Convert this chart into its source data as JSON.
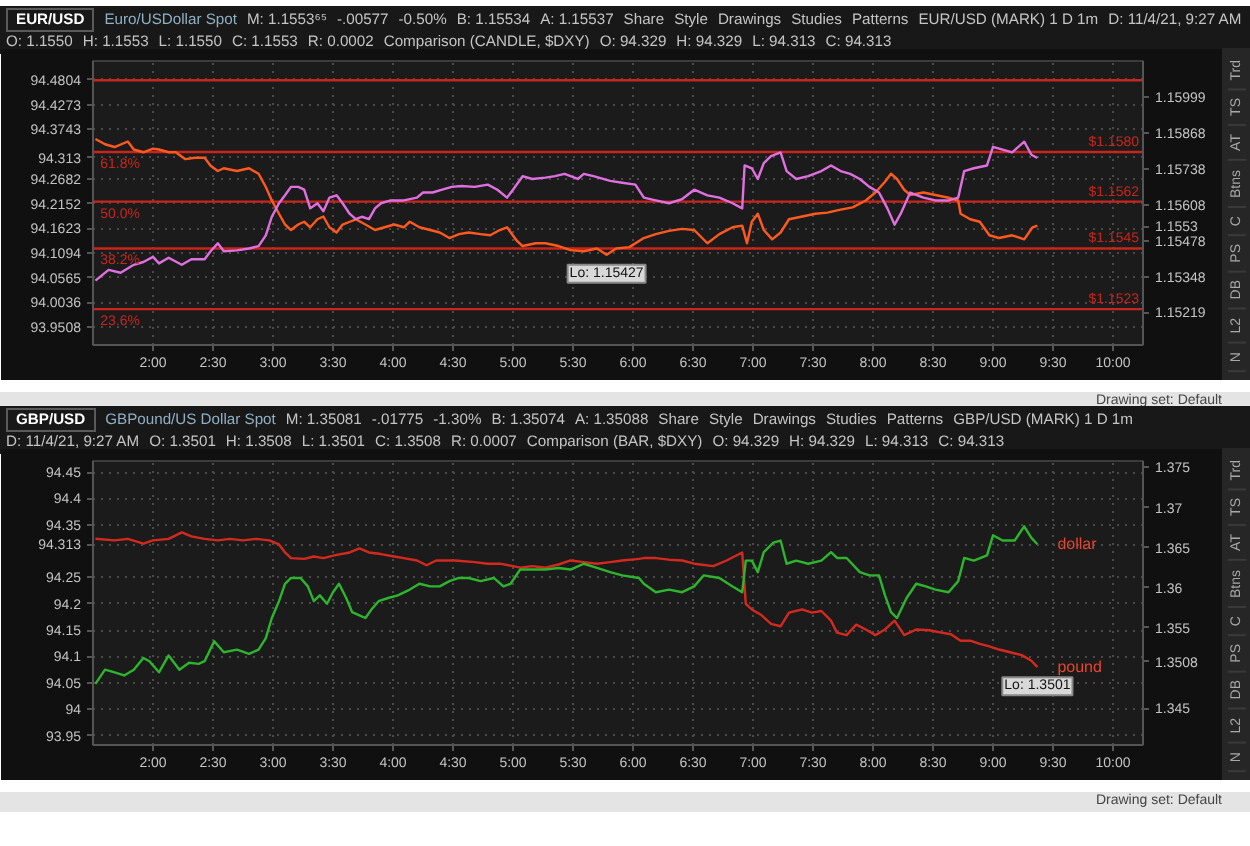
{
  "chart_data": [
    {
      "type": "line",
      "title": "EUR/USD",
      "subtitle": "Euro/USDollar Spot",
      "annotations": [
        "M: 1.1553⁶⁵",
        "-.00577",
        "-0.50%",
        "B: 1.15534",
        "A: 1.15537",
        "Share",
        "Style",
        "Drawings",
        "Studies",
        "Patterns",
        "EUR/USD (MARK) 1 D 1m",
        "D: 11/4/21, 9:27 AM",
        "O: 1.1550",
        "H: 1.1553",
        "L: 1.1550",
        "C: 1.1553",
        "R: 0.0002",
        "Comparison (CANDLE, $DXY)",
        "O: 94.329",
        "H: 94.329",
        "L: 94.313",
        "C: 94.313",
        {
          "text": "61.8%",
          "x": 1.56,
          "y": 1.158
        },
        {
          "text": "50.0%",
          "x": 1.56,
          "y": 1.1562
        },
        {
          "text": "38.2%",
          "x": 1.56,
          "y": 1.1545
        },
        {
          "text": "23.6%",
          "x": 1.56,
          "y": 1.1523
        },
        {
          "text": "Lo: 1.15427",
          "x": 5.78,
          "y": 1.15427
        }
      ],
      "xlim": [
        1.5,
        10.25
      ],
      "xticks": [
        {
          "value": 2,
          "label": "2:00"
        },
        {
          "value": 2.5,
          "label": "2:30"
        },
        {
          "value": 3,
          "label": "3:00"
        },
        {
          "value": 3.5,
          "label": "3:30"
        },
        {
          "value": 4,
          "label": "4:00"
        },
        {
          "value": 4.5,
          "label": "4:30"
        },
        {
          "value": 5,
          "label": "5:00"
        },
        {
          "value": 5.5,
          "label": "5:30"
        },
        {
          "value": 6,
          "label": "6:00"
        },
        {
          "value": 6.5,
          "label": "6:30"
        },
        {
          "value": 7,
          "label": "7:00"
        },
        {
          "value": 7.5,
          "label": "7:30"
        },
        {
          "value": 8,
          "label": "8:00"
        },
        {
          "value": 8.5,
          "label": "8:30"
        },
        {
          "value": 9,
          "label": "9:00"
        },
        {
          "value": 9.5,
          "label": "9:30"
        },
        {
          "value": 10,
          "label": "10:00"
        }
      ],
      "ylim": [
        1.151,
        1.1613
      ],
      "yticks": [
        1.15219,
        1.15348,
        1.15478,
        1.1553,
        1.15608,
        1.15738,
        1.15868,
        1.15999
      ],
      "y2lim": [
        93.912,
        94.521
      ],
      "y2ticks": [
        93.9508,
        94.0036,
        94.0565,
        94.1094,
        94.1623,
        94.2152,
        94.2682,
        94.313,
        94.3743,
        94.4273,
        94.4804
      ],
      "grid": true,
      "series": [
        {
          "color": "#c8261c",
          "x": [
            1.5,
            10.25
          ],
          "values": [
            1.1606,
            1.1606
          ]
        },
        {
          "color": "#c8261c",
          "x": [
            1.5,
            10.25
          ],
          "values": [
            1.158,
            1.158
          ],
          "value_labels": [
            null,
            "$1.1580"
          ]
        },
        {
          "color": "#c8261c",
          "x": [
            1.5,
            10.25
          ],
          "values": [
            1.1562,
            1.1562
          ],
          "value_labels": [
            null,
            "$1.1562"
          ]
        },
        {
          "color": "#c8261c",
          "x": [
            1.5,
            10.25
          ],
          "values": [
            1.1545,
            1.1545
          ],
          "value_labels": [
            null,
            "$1.1545"
          ]
        },
        {
          "color": "#c8261c",
          "x": [
            1.5,
            10.25
          ],
          "values": [
            1.1523,
            1.1523
          ],
          "value_labels": [
            null,
            "$1.1523"
          ]
        },
        {
          "color": "#ff5a1e",
          "x": [
            1.52,
            1.6,
            1.68,
            1.79,
            1.84,
            1.92,
            2.0,
            2.05,
            2.13,
            2.19,
            2.27,
            2.35,
            2.43,
            2.48,
            2.54,
            2.59,
            2.7,
            2.8,
            2.88,
            2.94,
            2.99,
            3.05,
            3.1,
            3.15,
            3.21,
            3.26,
            3.31,
            3.37,
            3.42,
            3.47,
            3.53,
            3.58,
            3.64,
            3.69,
            3.77,
            3.85,
            3.93,
            4.01,
            4.09,
            4.14,
            4.22,
            4.31,
            4.39,
            4.47,
            4.55,
            4.63,
            4.73,
            4.81,
            4.89,
            4.95,
            5.03,
            5.08,
            5.19,
            5.27,
            5.38,
            5.48,
            5.59,
            5.7,
            5.78,
            5.86,
            5.97,
            6.09,
            6.19,
            6.3,
            6.41,
            6.51,
            6.62,
            6.72,
            6.83,
            6.91,
            6.95,
            6.99,
            7.04,
            7.09,
            7.16,
            7.23,
            7.3,
            7.41,
            7.52,
            7.62,
            7.73,
            7.83,
            7.94,
            8.02,
            8.1,
            8.15,
            8.2,
            8.26,
            8.31,
            8.42,
            8.52,
            8.63,
            8.71,
            8.73,
            8.81,
            8.89,
            8.97,
            9.05,
            9.16,
            9.26,
            9.33,
            9.37
          ],
          "values": [
            1.15847,
            1.15828,
            1.15818,
            1.15838,
            1.15809,
            1.15799,
            1.15812,
            1.15809,
            1.15799,
            1.15799,
            1.15774,
            1.15779,
            1.15779,
            1.1575,
            1.15731,
            1.15741,
            1.15731,
            1.15741,
            1.15721,
            1.15673,
            1.15624,
            1.15576,
            1.15537,
            1.15517,
            1.15537,
            1.15547,
            1.15527,
            1.15556,
            1.15566,
            1.15527,
            1.15508,
            1.15537,
            1.15547,
            1.15556,
            1.15537,
            1.15517,
            1.15527,
            1.15537,
            1.15527,
            1.15547,
            1.15527,
            1.15517,
            1.15508,
            1.15488,
            1.15502,
            1.15508,
            1.15502,
            1.15498,
            1.15517,
            1.15527,
            1.15479,
            1.15459,
            1.15469,
            1.15469,
            1.15459,
            1.15444,
            1.1544,
            1.1545,
            1.15427,
            1.1545,
            1.15455,
            1.15488,
            1.15502,
            1.15514,
            1.15521,
            1.15517,
            1.15469,
            1.15502,
            1.15527,
            1.15533,
            1.15469,
            1.15547,
            1.15576,
            1.15517,
            1.15483,
            1.15508,
            1.15556,
            1.15566,
            1.15576,
            1.1558,
            1.15591,
            1.15599,
            1.15624,
            1.15653,
            1.15692,
            1.15721,
            1.15702,
            1.15663,
            1.15644,
            1.15653,
            1.15644,
            1.15634,
            1.15624,
            1.15576,
            1.15556,
            1.15547,
            1.15498,
            1.15488,
            1.15498,
            1.15483,
            1.15527,
            1.15533
          ]
        },
        {
          "color": "#e070e0",
          "axis": "y2",
          "x": [
            1.52,
            1.63,
            1.73,
            1.84,
            1.92,
            2.0,
            2.05,
            2.13,
            2.24,
            2.32,
            2.43,
            2.48,
            2.54,
            2.59,
            2.7,
            2.8,
            2.88,
            2.94,
            2.99,
            3.05,
            3.1,
            3.15,
            3.21,
            3.26,
            3.31,
            3.37,
            3.42,
            3.47,
            3.53,
            3.58,
            3.64,
            3.69,
            3.74,
            3.8,
            3.85,
            3.9,
            3.98,
            4.09,
            4.2,
            4.25,
            4.33,
            4.41,
            4.49,
            4.57,
            4.68,
            4.79,
            4.87,
            4.95,
            5.0,
            5.08,
            5.16,
            5.27,
            5.35,
            5.43,
            5.54,
            5.59,
            5.67,
            5.81,
            5.91,
            6.02,
            6.09,
            6.19,
            6.3,
            6.41,
            6.51,
            6.62,
            6.72,
            6.83,
            6.91,
            6.93,
            6.99,
            7.04,
            7.09,
            7.15,
            7.23,
            7.28,
            7.36,
            7.46,
            7.57,
            7.65,
            7.73,
            7.81,
            7.89,
            7.97,
            8.05,
            8.12,
            8.18,
            8.23,
            8.31,
            8.42,
            8.52,
            8.63,
            8.71,
            8.76,
            8.84,
            8.95,
            9.0,
            9.08,
            9.16,
            9.26,
            9.32,
            9.37
          ],
          "values": [
            94.05,
            94.073,
            94.067,
            94.084,
            94.09,
            94.101,
            94.087,
            94.099,
            94.084,
            94.096,
            94.096,
            94.113,
            94.13,
            94.113,
            94.115,
            94.119,
            94.124,
            94.147,
            94.187,
            94.216,
            94.233,
            94.251,
            94.251,
            94.245,
            94.205,
            94.216,
            94.199,
            94.228,
            94.233,
            94.216,
            94.193,
            94.182,
            94.187,
            94.182,
            94.205,
            94.216,
            94.222,
            94.222,
            94.228,
            94.239,
            94.239,
            94.245,
            94.251,
            94.253,
            94.251,
            94.256,
            94.245,
            94.228,
            94.245,
            94.274,
            94.268,
            94.271,
            94.274,
            94.279,
            94.268,
            94.279,
            94.274,
            94.264,
            94.26,
            94.256,
            94.228,
            94.222,
            94.216,
            94.225,
            94.245,
            94.233,
            94.228,
            94.216,
            94.205,
            94.297,
            94.291,
            94.268,
            94.302,
            94.317,
            94.325,
            94.285,
            94.268,
            94.274,
            94.285,
            94.297,
            94.285,
            94.279,
            94.268,
            94.251,
            94.239,
            94.205,
            94.17,
            94.193,
            94.239,
            94.228,
            94.222,
            94.222,
            94.228,
            94.285,
            94.291,
            94.297,
            94.337,
            94.331,
            94.325,
            94.348,
            94.32,
            94.313
          ]
        }
      ]
    },
    {
      "type": "other",
      "annotations": [
        "Trd",
        "TS",
        "AT",
        "Btns",
        "C",
        "PS",
        "DB",
        "L2",
        "N"
      ]
    },
    {
      "type": "other",
      "annotations": [
        "Drawing set: Default"
      ]
    },
    {
      "type": "line",
      "title": "GBP/USD",
      "subtitle": "GBPound/US Dollar Spot",
      "annotations": [
        "M: 1.35081",
        "-.01775",
        "-1.30%",
        "B: 1.35074",
        "A: 1.35088",
        "Share",
        "Style",
        "Drawings",
        "Studies",
        "Patterns",
        "GBP/USD (MARK) 1 D 1m",
        "D: 11/4/21, 9:27 AM",
        "O: 1.3501",
        "H: 1.3508",
        "L: 1.3501",
        "C: 1.3508",
        "R: 0.0007",
        "Comparison (BAR, $DXY)",
        "O: 94.329",
        "H: 94.329",
        "L: 94.313",
        "C: 94.313",
        {
          "text": "Lo: 1.3501",
          "x": 9.37,
          "y": 1.3501
        }
      ],
      "xlim": [
        1.5,
        10.25
      ],
      "xticks": [
        {
          "value": 2,
          "label": "2:00"
        },
        {
          "value": 2.5,
          "label": "2:30"
        },
        {
          "value": 3,
          "label": "3:00"
        },
        {
          "value": 3.5,
          "label": "3:30"
        },
        {
          "value": 4,
          "label": "4:00"
        },
        {
          "value": 4.5,
          "label": "4:30"
        },
        {
          "value": 5,
          "label": "5:00"
        },
        {
          "value": 5.5,
          "label": "5:30"
        },
        {
          "value": 6,
          "label": "6:00"
        },
        {
          "value": 6.5,
          "label": "6:30"
        },
        {
          "value": 7,
          "label": "7:00"
        },
        {
          "value": 7.5,
          "label": "7:30"
        },
        {
          "value": 8,
          "label": "8:00"
        },
        {
          "value": 8.5,
          "label": "8:30"
        },
        {
          "value": 9,
          "label": "9:00"
        },
        {
          "value": 9.5,
          "label": "9:30"
        },
        {
          "value": 10,
          "label": "10:00"
        }
      ],
      "ylim": [
        1.3404,
        1.3758
      ],
      "yticks": [
        1.345,
        1.3508,
        1.355,
        1.36,
        1.365,
        1.37,
        1.375
      ],
      "y2lim": [
        93.932,
        94.471
      ],
      "y2ticks": [
        93.95,
        94,
        94.05,
        94.1,
        94.15,
        94.2,
        94.25,
        94.313,
        94.35,
        94.4,
        94.45
      ],
      "grid": true,
      "series": [
        {
          "name": "pound",
          "color": "#d42a1e",
          "x": [
            1.52,
            1.68,
            1.79,
            1.92,
            2.0,
            2.13,
            2.24,
            2.32,
            2.43,
            2.54,
            2.64,
            2.75,
            2.86,
            2.97,
            3.05,
            3.1,
            3.15,
            3.26,
            3.34,
            3.42,
            3.53,
            3.64,
            3.72,
            3.8,
            3.9,
            4.01,
            4.09,
            4.2,
            4.28,
            4.36,
            4.52,
            4.68,
            4.79,
            4.89,
            5.0,
            5.06,
            5.16,
            5.27,
            5.38,
            5.48,
            5.59,
            5.7,
            5.81,
            5.91,
            6.05,
            6.09,
            6.19,
            6.3,
            6.41,
            6.51,
            6.67,
            6.78,
            6.91,
            6.94,
            6.99,
            7.07,
            7.15,
            7.23,
            7.3,
            7.41,
            7.49,
            7.57,
            7.65,
            7.7,
            7.78,
            7.86,
            7.94,
            8.02,
            8.1,
            8.18,
            8.26,
            8.36,
            8.47,
            8.57,
            8.65,
            8.73,
            8.81,
            8.89,
            8.97,
            9.05,
            9.16,
            9.24,
            9.32,
            9.37
          ],
          "values": [
            1.3661,
            1.3659,
            1.3661,
            1.3655,
            1.3659,
            1.3661,
            1.3669,
            1.3664,
            1.3661,
            1.3659,
            1.3661,
            1.3659,
            1.3661,
            1.3659,
            1.3654,
            1.3644,
            1.3637,
            1.3636,
            1.3639,
            1.3637,
            1.3641,
            1.3644,
            1.3649,
            1.3644,
            1.3642,
            1.3639,
            1.3637,
            1.3634,
            1.3628,
            1.3634,
            1.3634,
            1.3632,
            1.363,
            1.363,
            1.3627,
            1.3625,
            1.3627,
            1.3625,
            1.3629,
            1.3634,
            1.3632,
            1.363,
            1.3632,
            1.3634,
            1.3636,
            1.3637,
            1.3637,
            1.3635,
            1.3634,
            1.363,
            1.3627,
            1.3634,
            1.3644,
            1.358,
            1.3573,
            1.3566,
            1.3555,
            1.3552,
            1.3569,
            1.3573,
            1.3569,
            1.3571,
            1.3559,
            1.3544,
            1.3541,
            1.3554,
            1.3548,
            1.3541,
            1.3548,
            1.3559,
            1.3541,
            1.3548,
            1.3547,
            1.3544,
            1.3542,
            1.3534,
            1.3534,
            1.353,
            1.3527,
            1.3523,
            1.3519,
            1.3516,
            1.3509,
            1.3501
          ]
        },
        {
          "name": "dollar",
          "color": "#2db52d",
          "axis": "y2",
          "x": [
            1.52,
            1.6,
            1.68,
            1.76,
            1.84,
            1.92,
            1.97,
            2.05,
            2.13,
            2.22,
            2.3,
            2.38,
            2.43,
            2.51,
            2.59,
            2.7,
            2.8,
            2.88,
            2.94,
            2.99,
            3.05,
            3.1,
            3.15,
            3.23,
            3.29,
            3.34,
            3.39,
            3.45,
            3.5,
            3.55,
            3.61,
            3.66,
            3.72,
            3.77,
            3.82,
            3.88,
            3.96,
            4.04,
            4.14,
            4.22,
            4.31,
            4.39,
            4.47,
            4.55,
            4.63,
            4.73,
            4.84,
            4.92,
            4.98,
            5.06,
            5.16,
            5.27,
            5.38,
            5.48,
            5.59,
            5.7,
            5.81,
            5.91,
            6.05,
            6.09,
            6.19,
            6.3,
            6.41,
            6.51,
            6.59,
            6.72,
            6.83,
            6.91,
            6.94,
            6.99,
            7.04,
            7.09,
            7.17,
            7.23,
            7.28,
            7.36,
            7.46,
            7.57,
            7.65,
            7.7,
            7.78,
            7.89,
            7.97,
            8.05,
            8.1,
            8.15,
            8.2,
            8.28,
            8.36,
            8.44,
            8.52,
            8.63,
            8.71,
            8.76,
            8.84,
            8.95,
            9.0,
            9.08,
            9.18,
            9.26,
            9.32,
            9.37
          ],
          "values": [
            94.048,
            94.075,
            94.07,
            94.064,
            94.075,
            94.097,
            94.091,
            94.07,
            94.102,
            94.075,
            94.088,
            94.086,
            94.091,
            94.129,
            94.108,
            94.113,
            94.105,
            94.113,
            94.135,
            94.173,
            94.205,
            94.238,
            94.249,
            94.249,
            94.233,
            94.205,
            94.216,
            94.2,
            94.222,
            94.238,
            94.211,
            94.184,
            94.178,
            94.173,
            94.189,
            94.205,
            94.211,
            94.216,
            94.227,
            94.238,
            94.233,
            94.233,
            94.243,
            94.249,
            94.249,
            94.243,
            94.249,
            94.233,
            94.238,
            94.265,
            94.265,
            94.265,
            94.268,
            94.265,
            94.276,
            94.268,
            94.26,
            94.254,
            94.249,
            94.238,
            94.222,
            94.227,
            94.222,
            94.233,
            94.254,
            94.249,
            94.233,
            94.222,
            94.282,
            94.282,
            94.26,
            94.298,
            94.316,
            94.32,
            94.276,
            94.282,
            94.276,
            94.282,
            94.298,
            94.287,
            94.287,
            94.26,
            94.254,
            94.254,
            94.216,
            94.184,
            94.173,
            94.211,
            94.238,
            94.233,
            94.227,
            94.222,
            94.243,
            94.287,
            94.282,
            94.292,
            94.33,
            94.32,
            94.32,
            94.347,
            94.325,
            94.313
          ]
        }
      ]
    },
    {
      "type": "other",
      "annotations": [
        "Trd",
        "TS",
        "AT",
        "Btns",
        "C",
        "PS",
        "DB",
        "L2",
        "N"
      ]
    },
    {
      "type": "other",
      "annotations": [
        "Drawing set: Default"
      ]
    }
  ]
}
